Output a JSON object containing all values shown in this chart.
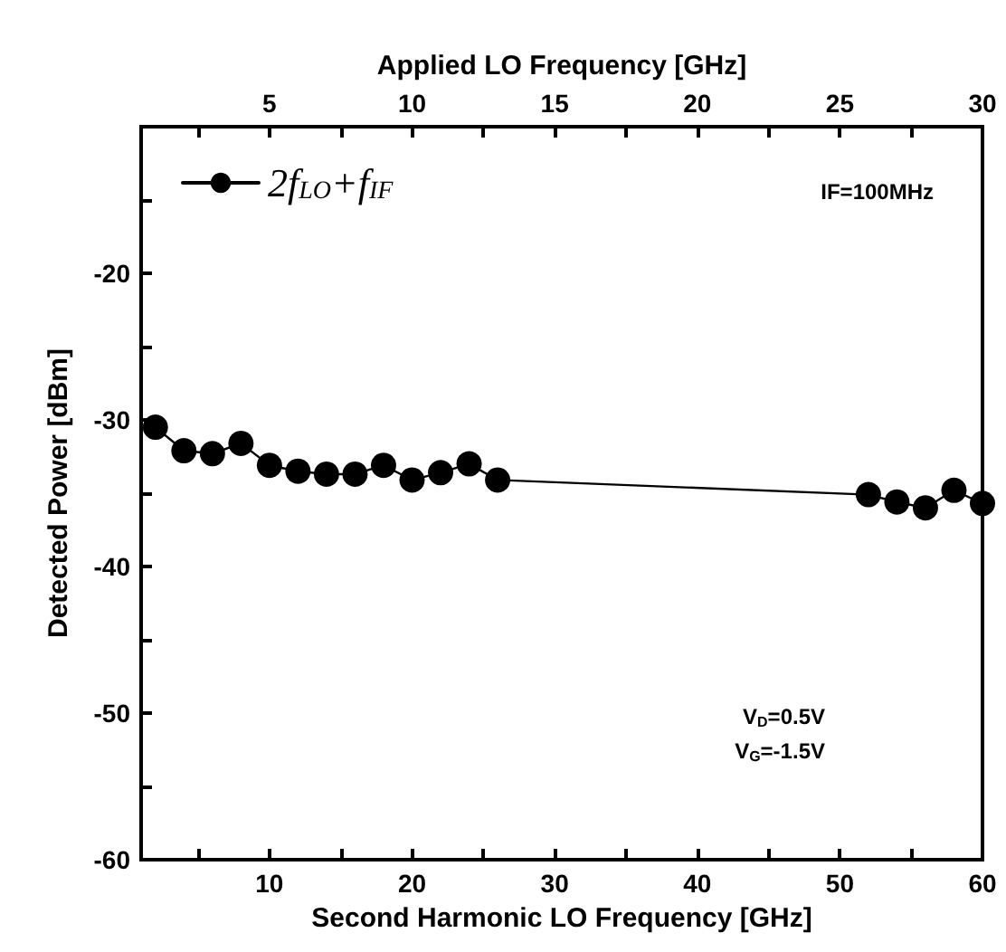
{
  "chart_data": {
    "type": "line",
    "xlabel": "Second Harmonic LO Frequency [GHz]",
    "x2label": "Applied LO Frequency [GHz]",
    "ylabel": "Detected Power [dBm]",
    "x": [
      2,
      4,
      6,
      8,
      10,
      12,
      14,
      16,
      18,
      20,
      22,
      24,
      26,
      52,
      54,
      56,
      58,
      60
    ],
    "series": [
      {
        "name": "2f$_{LO}$+f$_{IF}$",
        "color": "#000000",
        "values": [
          -30.5,
          -32.1,
          -32.3,
          -31.6,
          -33.1,
          -33.5,
          -33.7,
          -33.7,
          -33.1,
          -34.1,
          -33.6,
          -33.0,
          -34.1,
          -35.1,
          -35.6,
          -36.0,
          -34.8,
          -35.7
        ]
      }
    ],
    "xlim": [
      1,
      60
    ],
    "xticks": [
      {
        "value": 5,
        "label": null
      },
      10,
      {
        "value": 15,
        "label": null
      },
      20,
      {
        "value": 25,
        "label": null
      },
      30,
      {
        "value": 35,
        "label": null
      },
      40,
      {
        "value": 45,
        "label": null
      },
      50,
      {
        "value": 55,
        "label": null
      },
      60
    ],
    "x2lim": [
      0.5,
      30
    ],
    "x2ticks": [
      {
        "value": 2.5,
        "label": null
      },
      5,
      {
        "value": 7.5,
        "label": null
      },
      10,
      {
        "value": 12.5,
        "label": null
      },
      15,
      {
        "value": 17.5,
        "label": null
      },
      20,
      {
        "value": 22.5,
        "label": null
      },
      25,
      {
        "value": 27.5,
        "label": null
      },
      30
    ],
    "ylim": [
      -60,
      -10
    ],
    "yticks": [
      -60,
      {
        "value": -55,
        "label": null
      },
      -50,
      {
        "value": -45,
        "label": null
      },
      -40,
      {
        "value": -35,
        "label": null
      },
      -30,
      {
        "value": -25,
        "label": null
      },
      -20,
      {
        "value": -15,
        "label": null
      },
      {
        "value": -10,
        "label": null
      }
    ],
    "annotations": [
      "IF=100MHz",
      "V$_{D}$=0.5V",
      "V$_{G}$=-1.5V"
    ],
    "grid": false,
    "legend": "top left",
    "marker": "circle",
    "line_style": "solid"
  }
}
